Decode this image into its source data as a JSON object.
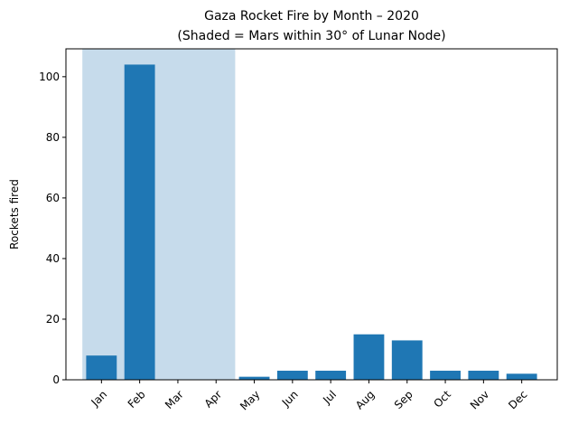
{
  "chart_data": {
    "type": "bar",
    "title": "Gaza Rocket Fire by Month – 2020",
    "subtitle": "(Shaded = Mars within 30° of Lunar Node)",
    "y_label": "Rockets fired",
    "categories": [
      "Jan",
      "Feb",
      "Mar",
      "Apr",
      "May",
      "Jun",
      "Jul",
      "Aug",
      "Sep",
      "Oct",
      "Nov",
      "Dec"
    ],
    "values": [
      8,
      104,
      0,
      0,
      1,
      3,
      3,
      15,
      13,
      3,
      3,
      2
    ],
    "color": "#1f77b4",
    "shaded_span": [
      "Jan",
      "Apr"
    ],
    "shade_color": "#c6dbeb",
    "ylim": [
      0,
      109.2
    ],
    "yticks": [
      0,
      20,
      40,
      60,
      80,
      100
    ],
    "grid": false
  }
}
